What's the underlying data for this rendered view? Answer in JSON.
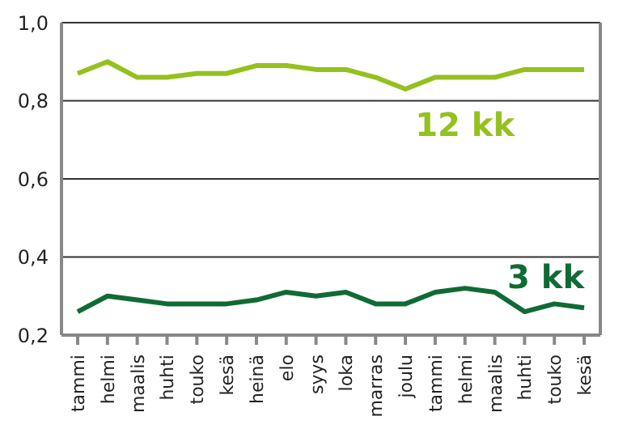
{
  "chart_data": {
    "type": "line",
    "categories": [
      "tammi",
      "helmi",
      "maalis",
      "huhti",
      "touko",
      "kesä",
      "heinä",
      "elo",
      "syys",
      "loka",
      "marras",
      "joulu",
      "tammi",
      "helmi",
      "maalis",
      "huhti",
      "touko",
      "kesä"
    ],
    "series": [
      {
        "name": "12 kk",
        "color": "#94c11f",
        "values": [
          0.87,
          0.9,
          0.86,
          0.86,
          0.87,
          0.87,
          0.89,
          0.89,
          0.88,
          0.88,
          0.86,
          0.83,
          0.86,
          0.86,
          0.86,
          0.88,
          0.88,
          0.88
        ]
      },
      {
        "name": "3 kk",
        "color": "#0f6b35",
        "values": [
          0.26,
          0.3,
          0.29,
          0.28,
          0.28,
          0.28,
          0.29,
          0.31,
          0.3,
          0.31,
          0.28,
          0.28,
          0.31,
          0.32,
          0.31,
          0.26,
          0.28,
          0.27
        ]
      }
    ],
    "ylim": [
      0.2,
      1.0
    ],
    "yticks": [
      {
        "value": 0.2,
        "label": "0,2"
      },
      {
        "value": 0.4,
        "label": "0,4"
      },
      {
        "value": 0.6,
        "label": "0,6"
      },
      {
        "value": 0.8,
        "label": "0,8"
      },
      {
        "value": 1.0,
        "label": "1,0"
      }
    ],
    "grid": "y",
    "legend": false,
    "marker": "none",
    "line_style": "solid"
  }
}
